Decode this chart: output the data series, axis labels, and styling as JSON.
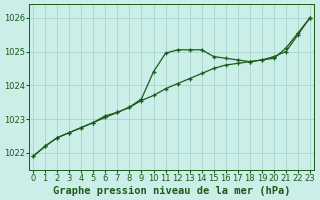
{
  "title": "Graphe pression niveau de la mer (hPa)",
  "background_color": "#cceee8",
  "grid_color": "#aad8d0",
  "line_color": "#1a5c1a",
  "x_ticks": [
    0,
    1,
    2,
    3,
    4,
    5,
    6,
    7,
    8,
    9,
    10,
    11,
    12,
    13,
    14,
    15,
    16,
    17,
    18,
    19,
    20,
    21,
    22,
    23
  ],
  "y_ticks": [
    1022,
    1023,
    1024,
    1025,
    1026
  ],
  "ylim": [
    1021.5,
    1026.4
  ],
  "xlim": [
    -0.3,
    23.3
  ],
  "series1": [
    [
      0,
      1021.9
    ],
    [
      1,
      1022.2
    ],
    [
      2,
      1022.45
    ],
    [
      3,
      1022.6
    ],
    [
      4,
      1022.75
    ],
    [
      5,
      1022.9
    ],
    [
      6,
      1023.1
    ],
    [
      7,
      1023.2
    ],
    [
      8,
      1023.35
    ],
    [
      9,
      1023.6
    ],
    [
      10,
      1024.4
    ],
    [
      11,
      1024.95
    ],
    [
      12,
      1025.05
    ],
    [
      13,
      1025.05
    ],
    [
      14,
      1025.05
    ],
    [
      15,
      1024.85
    ],
    [
      16,
      1024.8
    ],
    [
      17,
      1024.75
    ],
    [
      18,
      1024.7
    ],
    [
      19,
      1024.75
    ],
    [
      20,
      1024.8
    ],
    [
      21,
      1025.1
    ],
    [
      22,
      1025.55
    ],
    [
      23,
      1026.0
    ]
  ],
  "series2": [
    [
      0,
      1021.9
    ],
    [
      1,
      1022.2
    ],
    [
      2,
      1022.45
    ],
    [
      3,
      1022.6
    ],
    [
      4,
      1022.75
    ],
    [
      5,
      1022.9
    ],
    [
      6,
      1023.05
    ],
    [
      7,
      1023.2
    ],
    [
      8,
      1023.35
    ],
    [
      9,
      1023.55
    ],
    [
      10,
      1023.7
    ],
    [
      11,
      1023.9
    ],
    [
      12,
      1024.05
    ],
    [
      13,
      1024.2
    ],
    [
      14,
      1024.35
    ],
    [
      15,
      1024.5
    ],
    [
      16,
      1024.6
    ],
    [
      17,
      1024.65
    ],
    [
      18,
      1024.7
    ],
    [
      19,
      1024.75
    ],
    [
      20,
      1024.85
    ],
    [
      21,
      1025.0
    ],
    [
      22,
      1025.5
    ],
    [
      23,
      1026.0
    ]
  ],
  "title_fontsize": 7.5,
  "tick_fontsize": 6.0
}
